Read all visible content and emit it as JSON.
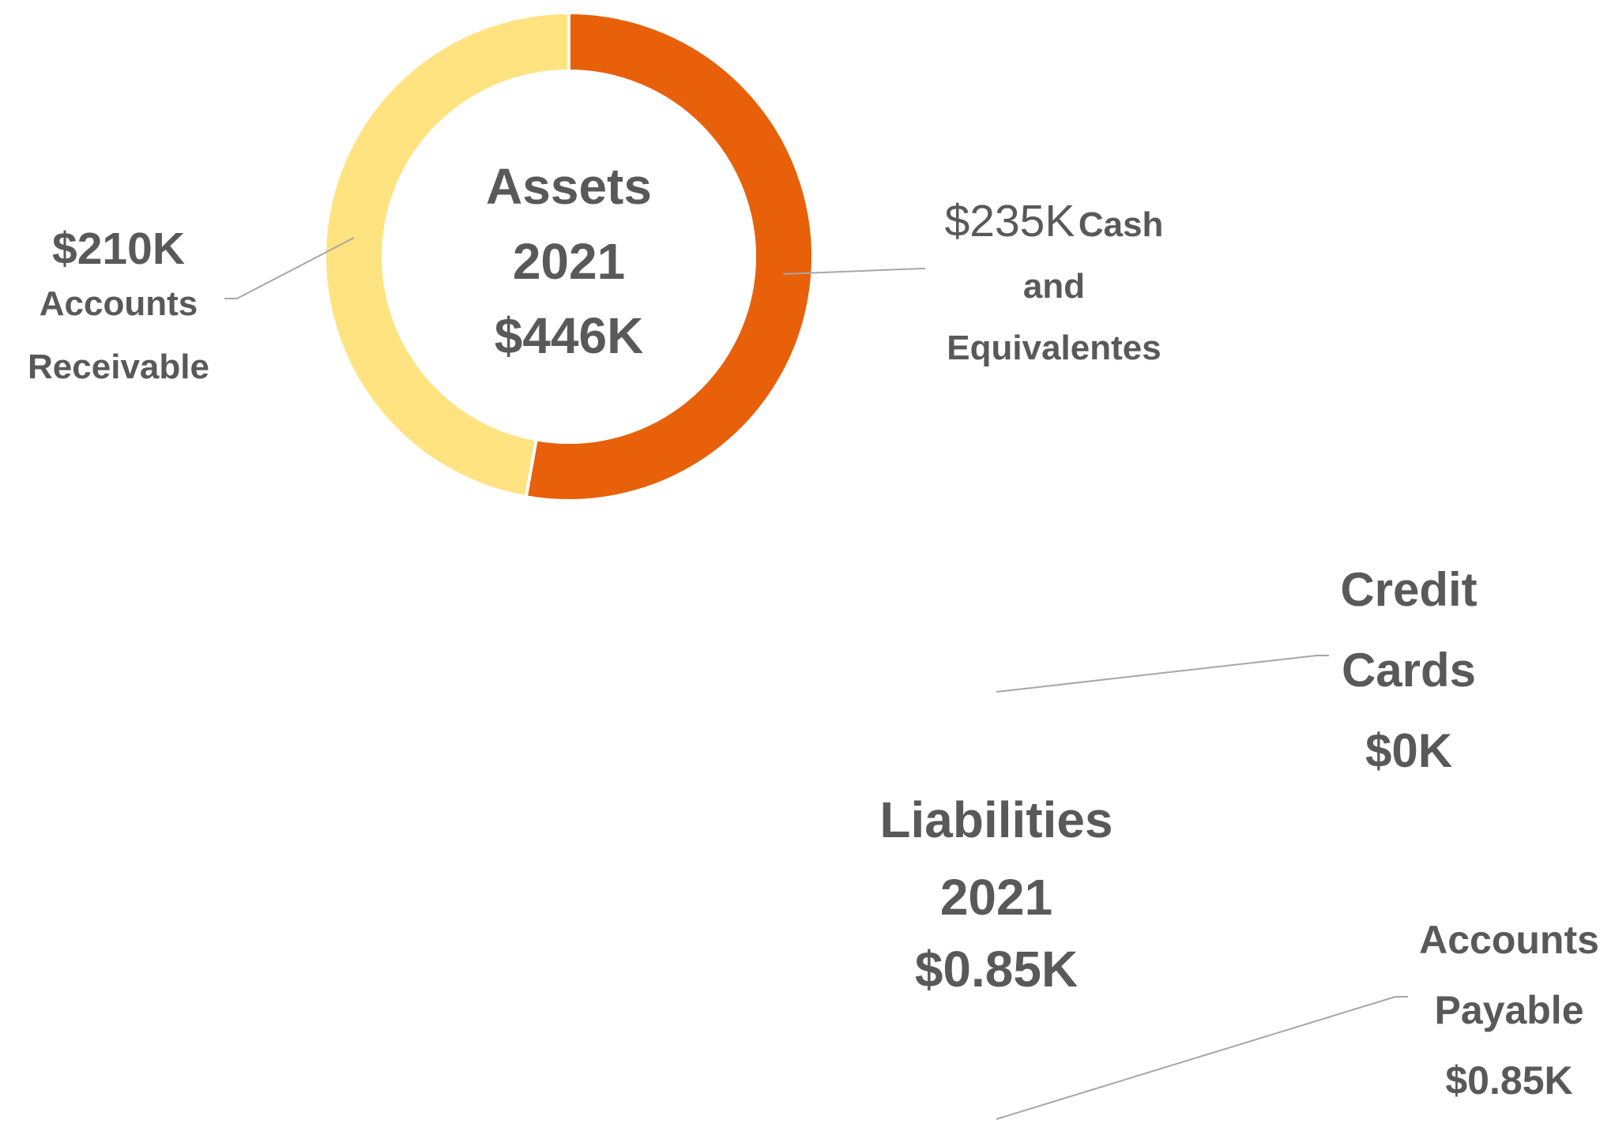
{
  "chart_data": [
    {
      "type": "donut",
      "title": "Assets",
      "subtitle": "2021",
      "total_label": "$446K",
      "categories": [
        "Cash and Equivalentes",
        "Accounts Receivable"
      ],
      "values": [
        235,
        210
      ],
      "value_labels": [
        "$235K",
        "$210K"
      ],
      "colors": [
        "#E8600A",
        "#FFE380"
      ]
    },
    {
      "type": "donut",
      "title": "Liabilities",
      "subtitle": "2021",
      "total_label": "$0.85K",
      "categories": [
        "Credit Cards",
        "Accounts Payable"
      ],
      "values": [
        0,
        0.85
      ],
      "value_labels": [
        "$0K",
        "$0.85K"
      ],
      "colors": [
        "#F4A700",
        "#F4A700"
      ]
    }
  ]
}
